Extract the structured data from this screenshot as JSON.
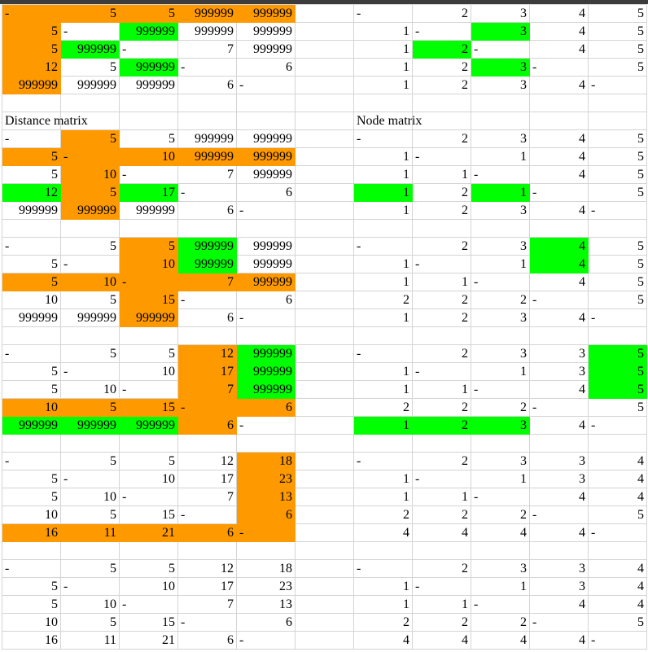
{
  "colors": {
    "gridline": "#d4d4d4",
    "header_bar": "#3c3c3c"
  },
  "labels": {
    "distance": "Distance matrix",
    "node": "Node matrix"
  },
  "steps": [
    {
      "distance": {
        "values": [
          [
            "-",
            "5",
            "5",
            "999999",
            "999999"
          ],
          [
            "5",
            "-",
            "999999",
            "999999",
            "999999"
          ],
          [
            "5",
            "999999",
            "-",
            "7",
            "999999"
          ],
          [
            "12",
            "5",
            "999999",
            "-",
            "6"
          ],
          [
            "999999",
            "999999",
            "999999",
            "6",
            "-"
          ]
        ],
        "fill": [
          [
            "#ff9900",
            "#ff9900",
            "#ff9900",
            "#ff9900",
            "#ff9900"
          ],
          [
            "#ff9900",
            null,
            "#00ff00",
            null,
            null
          ],
          [
            "#ff9900",
            "#00ff00",
            null,
            null,
            null
          ],
          [
            "#ff9900",
            null,
            "#00ff00",
            null,
            null
          ],
          [
            "#ff9900",
            null,
            null,
            null,
            null
          ]
        ]
      },
      "node": {
        "values": [
          [
            "-",
            "2",
            "3",
            "4",
            "5"
          ],
          [
            "1",
            "-",
            "3",
            "4",
            "5"
          ],
          [
            "1",
            "2",
            "-",
            "4",
            "5"
          ],
          [
            "1",
            "2",
            "3",
            "-",
            "5"
          ],
          [
            "1",
            "2",
            "3",
            "4",
            "-"
          ]
        ],
        "fill": [
          null,
          [
            null,
            null,
            "#00ff00",
            null,
            null
          ],
          [
            null,
            "#00ff00",
            null,
            null,
            null
          ],
          [
            null,
            null,
            "#00ff00",
            null,
            null
          ],
          null
        ]
      }
    },
    {
      "distance": {
        "values": [
          [
            "-",
            "5",
            "5",
            "999999",
            "999999"
          ],
          [
            "5",
            "-",
            "10",
            "999999",
            "999999"
          ],
          [
            "5",
            "10",
            "-",
            "7",
            "999999"
          ],
          [
            "12",
            "5",
            "17",
            "-",
            "6"
          ],
          [
            "999999",
            "999999",
            "999999",
            "6",
            "-"
          ]
        ],
        "fill": [
          [
            null,
            "#ff9900",
            null,
            null,
            null
          ],
          [
            "#ff9900",
            "#ff9900",
            "#ff9900",
            "#ff9900",
            "#ff9900"
          ],
          [
            null,
            "#ff9900",
            null,
            null,
            null
          ],
          [
            "#00ff00",
            "#ff9900",
            "#00ff00",
            null,
            null
          ],
          [
            null,
            "#ff9900",
            null,
            null,
            null
          ]
        ]
      },
      "node": {
        "values": [
          [
            "-",
            "2",
            "3",
            "4",
            "5"
          ],
          [
            "1",
            "-",
            "1",
            "4",
            "5"
          ],
          [
            "1",
            "1",
            "-",
            "4",
            "5"
          ],
          [
            "1",
            "2",
            "1",
            "-",
            "5"
          ],
          [
            "1",
            "2",
            "3",
            "4",
            "-"
          ]
        ],
        "fill": [
          null,
          null,
          null,
          [
            "#00ff00",
            null,
            "#00ff00",
            null,
            null
          ],
          null
        ]
      }
    },
    {
      "distance": {
        "values": [
          [
            "-",
            "5",
            "5",
            "999999",
            "999999"
          ],
          [
            "5",
            "-",
            "10",
            "999999",
            "999999"
          ],
          [
            "5",
            "10",
            "-",
            "7",
            "999999"
          ],
          [
            "10",
            "5",
            "15",
            "-",
            "6"
          ],
          [
            "999999",
            "999999",
            "999999",
            "6",
            "-"
          ]
        ],
        "fill": [
          [
            null,
            null,
            "#ff9900",
            "#00ff00",
            null
          ],
          [
            null,
            null,
            "#ff9900",
            "#00ff00",
            null
          ],
          [
            "#ff9900",
            "#ff9900",
            "#ff9900",
            "#ff9900",
            "#ff9900"
          ],
          [
            null,
            null,
            "#ff9900",
            null,
            null
          ],
          [
            null,
            null,
            "#ff9900",
            null,
            null
          ]
        ]
      },
      "node": {
        "values": [
          [
            "-",
            "2",
            "3",
            "4",
            "5"
          ],
          [
            "1",
            "-",
            "1",
            "4",
            "5"
          ],
          [
            "1",
            "1",
            "-",
            "4",
            "5"
          ],
          [
            "2",
            "2",
            "2",
            "-",
            "5"
          ],
          [
            "1",
            "2",
            "3",
            "4",
            "-"
          ]
        ],
        "fill": [
          [
            null,
            null,
            null,
            "#00ff00",
            null
          ],
          [
            null,
            null,
            null,
            "#00ff00",
            null
          ],
          null,
          null,
          null
        ]
      }
    },
    {
      "distance": {
        "values": [
          [
            "-",
            "5",
            "5",
            "12",
            "999999"
          ],
          [
            "5",
            "-",
            "10",
            "17",
            "999999"
          ],
          [
            "5",
            "10",
            "-",
            "7",
            "999999"
          ],
          [
            "10",
            "5",
            "15",
            "-",
            "6"
          ],
          [
            "999999",
            "999999",
            "999999",
            "6",
            "-"
          ]
        ],
        "fill": [
          [
            null,
            null,
            null,
            "#ff9900",
            "#00ff00"
          ],
          [
            null,
            null,
            null,
            "#ff9900",
            "#00ff00"
          ],
          [
            null,
            null,
            null,
            "#ff9900",
            "#00ff00"
          ],
          [
            "#ff9900",
            "#ff9900",
            "#ff9900",
            "#ff9900",
            "#ff9900"
          ],
          [
            "#00ff00",
            "#00ff00",
            "#00ff00",
            "#ff9900",
            null
          ]
        ]
      },
      "node": {
        "values": [
          [
            "-",
            "2",
            "3",
            "3",
            "5"
          ],
          [
            "1",
            "-",
            "1",
            "3",
            "5"
          ],
          [
            "1",
            "1",
            "-",
            "4",
            "5"
          ],
          [
            "2",
            "2",
            "2",
            "-",
            "5"
          ],
          [
            "1",
            "2",
            "3",
            "4",
            "-"
          ]
        ],
        "fill": [
          [
            null,
            null,
            null,
            null,
            "#00ff00"
          ],
          [
            null,
            null,
            null,
            null,
            "#00ff00"
          ],
          [
            null,
            null,
            null,
            null,
            "#00ff00"
          ],
          null,
          [
            "#00ff00",
            "#00ff00",
            "#00ff00",
            null,
            null
          ]
        ]
      }
    },
    {
      "distance": {
        "values": [
          [
            "-",
            "5",
            "5",
            "12",
            "18"
          ],
          [
            "5",
            "-",
            "10",
            "17",
            "23"
          ],
          [
            "5",
            "10",
            "-",
            "7",
            "13"
          ],
          [
            "10",
            "5",
            "15",
            "-",
            "6"
          ],
          [
            "16",
            "11",
            "21",
            "6",
            "-"
          ]
        ],
        "fill": [
          [
            null,
            null,
            null,
            null,
            "#ff9900"
          ],
          [
            null,
            null,
            null,
            null,
            "#ff9900"
          ],
          [
            null,
            null,
            null,
            null,
            "#ff9900"
          ],
          [
            null,
            null,
            null,
            null,
            "#ff9900"
          ],
          [
            "#ff9900",
            "#ff9900",
            "#ff9900",
            "#ff9900",
            "#ff9900"
          ]
        ]
      },
      "node": {
        "values": [
          [
            "-",
            "2",
            "3",
            "3",
            "4"
          ],
          [
            "1",
            "-",
            "1",
            "3",
            "4"
          ],
          [
            "1",
            "1",
            "-",
            "4",
            "4"
          ],
          [
            "2",
            "2",
            "2",
            "-",
            "5"
          ],
          [
            "4",
            "4",
            "4",
            "4",
            "-"
          ]
        ],
        "fill": null
      }
    },
    {
      "distance": {
        "values": [
          [
            "-",
            "5",
            "5",
            "12",
            "18"
          ],
          [
            "5",
            "-",
            "10",
            "17",
            "23"
          ],
          [
            "5",
            "10",
            "-",
            "7",
            "13"
          ],
          [
            "10",
            "5",
            "15",
            "-",
            "6"
          ],
          [
            "16",
            "11",
            "21",
            "6",
            "-"
          ]
        ],
        "fill": null
      },
      "node": {
        "values": [
          [
            "-",
            "2",
            "3",
            "3",
            "4"
          ],
          [
            "1",
            "-",
            "1",
            "3",
            "4"
          ],
          [
            "1",
            "1",
            "-",
            "4",
            "4"
          ],
          [
            "2",
            "2",
            "2",
            "-",
            "5"
          ],
          [
            "4",
            "4",
            "4",
            "4",
            "-"
          ]
        ],
        "fill": null
      }
    }
  ]
}
